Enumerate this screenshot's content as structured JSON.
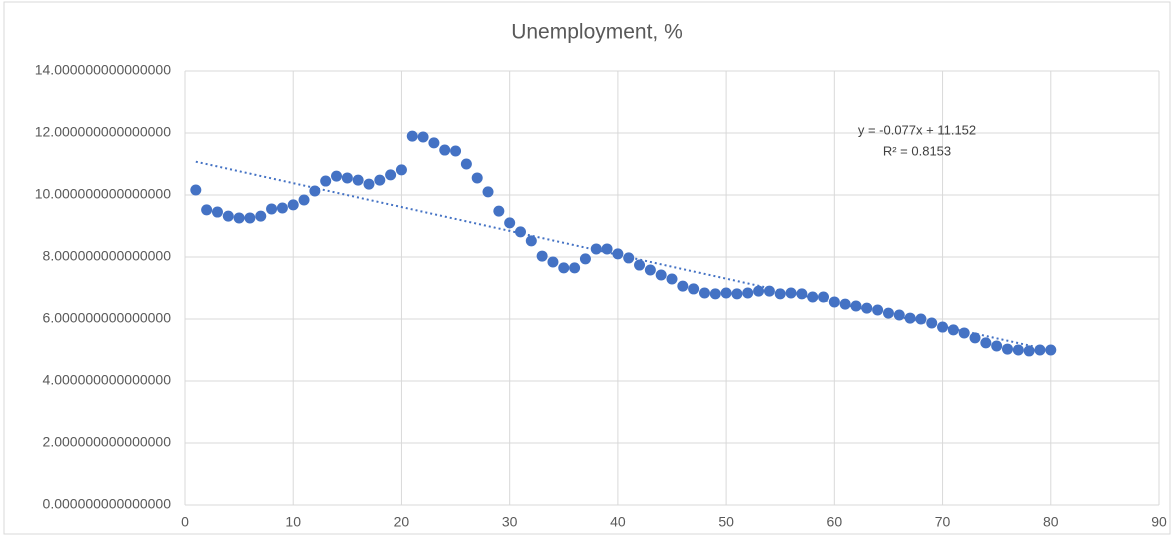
{
  "chart_data": {
    "type": "scatter",
    "title": "Unemployment, %",
    "x": [
      1,
      2,
      3,
      4,
      5,
      6,
      7,
      8,
      9,
      10,
      11,
      12,
      13,
      14,
      15,
      16,
      17,
      18,
      19,
      20,
      21,
      22,
      23,
      24,
      25,
      26,
      27,
      28,
      29,
      30,
      31,
      32,
      33,
      34,
      35,
      36,
      37,
      38,
      39,
      40,
      41,
      42,
      43,
      44,
      45,
      46,
      47,
      48,
      49,
      50,
      51,
      52,
      53,
      54,
      55,
      56,
      57,
      58,
      59,
      60,
      61,
      62,
      63,
      64,
      65,
      66,
      67,
      68,
      69,
      70,
      71,
      72,
      73,
      74,
      75,
      76,
      77,
      78,
      79,
      80
    ],
    "values": [
      10.16,
      9.52,
      9.45,
      9.32,
      9.26,
      9.26,
      9.32,
      9.55,
      9.58,
      9.68,
      9.84,
      10.13,
      10.45,
      10.61,
      10.55,
      10.48,
      10.35,
      10.48,
      10.65,
      10.81,
      11.9,
      11.87,
      11.68,
      11.45,
      11.42,
      11.0,
      10.55,
      10.1,
      9.48,
      9.1,
      8.81,
      8.52,
      8.03,
      7.84,
      7.65,
      7.65,
      7.94,
      8.26,
      8.26,
      8.1,
      7.97,
      7.74,
      7.58,
      7.42,
      7.29,
      7.06,
      6.97,
      6.84,
      6.81,
      6.84,
      6.81,
      6.84,
      6.9,
      6.9,
      6.81,
      6.84,
      6.81,
      6.71,
      6.71,
      6.55,
      6.48,
      6.42,
      6.35,
      6.29,
      6.19,
      6.13,
      6.03,
      6.0,
      5.87,
      5.74,
      5.65,
      5.55,
      5.39,
      5.23,
      5.13,
      5.03,
      5.0,
      4.97,
      5.0,
      5.0
    ],
    "color": "#4472c4",
    "trendline": {
      "label": "y = -0.077x + 11.152",
      "r2_label": "R² = 0.8153",
      "slope": -0.077,
      "intercept": 11.152
    },
    "xlim": [
      0,
      90
    ],
    "xticks": [
      0,
      10,
      20,
      30,
      40,
      50,
      60,
      70,
      80,
      90
    ],
    "ylim": [
      0,
      14
    ],
    "yticks": [
      {
        "value": 0,
        "label": "0.000000000000000"
      },
      {
        "value": 2,
        "label": "2.000000000000000"
      },
      {
        "value": 4,
        "label": "4.000000000000000"
      },
      {
        "value": 6,
        "label": "6.000000000000000"
      },
      {
        "value": 8,
        "label": "8.000000000000000"
      },
      {
        "value": 10,
        "label": "10.000000000000000"
      },
      {
        "value": 12,
        "label": "12.000000000000000"
      },
      {
        "value": 14,
        "label": "14.000000000000000"
      }
    ],
    "grid": true
  }
}
